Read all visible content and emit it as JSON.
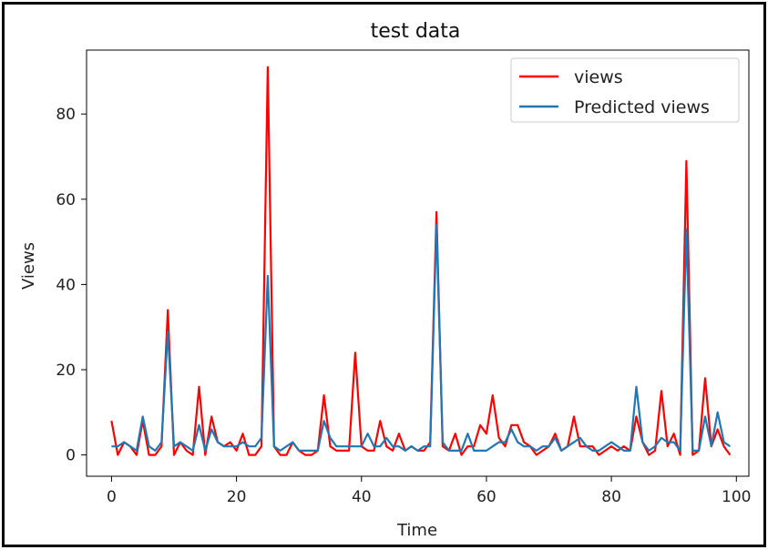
{
  "chart_data": {
    "type": "line",
    "title": "test data",
    "xlabel": "Time",
    "ylabel": "Views",
    "xlim": [
      -4,
      102
    ],
    "ylim": [
      -5,
      95
    ],
    "xticks": [
      0,
      20,
      40,
      60,
      80,
      100
    ],
    "yticks": [
      0,
      20,
      40,
      60,
      80
    ],
    "grid": false,
    "legend_position": "top-right",
    "series": [
      {
        "name": "views",
        "color": "#ff0000",
        "values": [
          8,
          0,
          3,
          2,
          0,
          8,
          0,
          0,
          2,
          34,
          0,
          3,
          1,
          0,
          16,
          0,
          9,
          3,
          2,
          3,
          1,
          5,
          0,
          0,
          2,
          91,
          2,
          0,
          0,
          3,
          1,
          0,
          0,
          1,
          14,
          2,
          1,
          1,
          1,
          24,
          2,
          1,
          1,
          8,
          2,
          1,
          5,
          1,
          2,
          1,
          1,
          3,
          57,
          2,
          1,
          5,
          0,
          2,
          2,
          7,
          5,
          14,
          4,
          2,
          7,
          7,
          3,
          2,
          0,
          1,
          2,
          5,
          1,
          2,
          9,
          2,
          2,
          2,
          0,
          1,
          2,
          1,
          2,
          1,
          9,
          3,
          0,
          1,
          15,
          2,
          5,
          0,
          69,
          0,
          1,
          18,
          2,
          6,
          2,
          0
        ]
      },
      {
        "name": "Predicted views",
        "color": "#1f77b4",
        "values": [
          2,
          2,
          3,
          2,
          1,
          9,
          2,
          1,
          3,
          29,
          2,
          3,
          2,
          1,
          7,
          1,
          6,
          3,
          2,
          2,
          2,
          3,
          2,
          2,
          4,
          42,
          2,
          1,
          2,
          3,
          1,
          1,
          1,
          1,
          8,
          4,
          2,
          2,
          2,
          2,
          2,
          5,
          2,
          2,
          4,
          2,
          2,
          1,
          2,
          1,
          2,
          2,
          54,
          3,
          1,
          1,
          1,
          5,
          1,
          1,
          1,
          2,
          3,
          3,
          6,
          3,
          2,
          2,
          1,
          2,
          2,
          4,
          1,
          2,
          3,
          4,
          2,
          1,
          1,
          2,
          3,
          2,
          1,
          1,
          16,
          3,
          1,
          2,
          4,
          3,
          3,
          1,
          53,
          1,
          1,
          9,
          2,
          10,
          3,
          2
        ]
      }
    ]
  }
}
